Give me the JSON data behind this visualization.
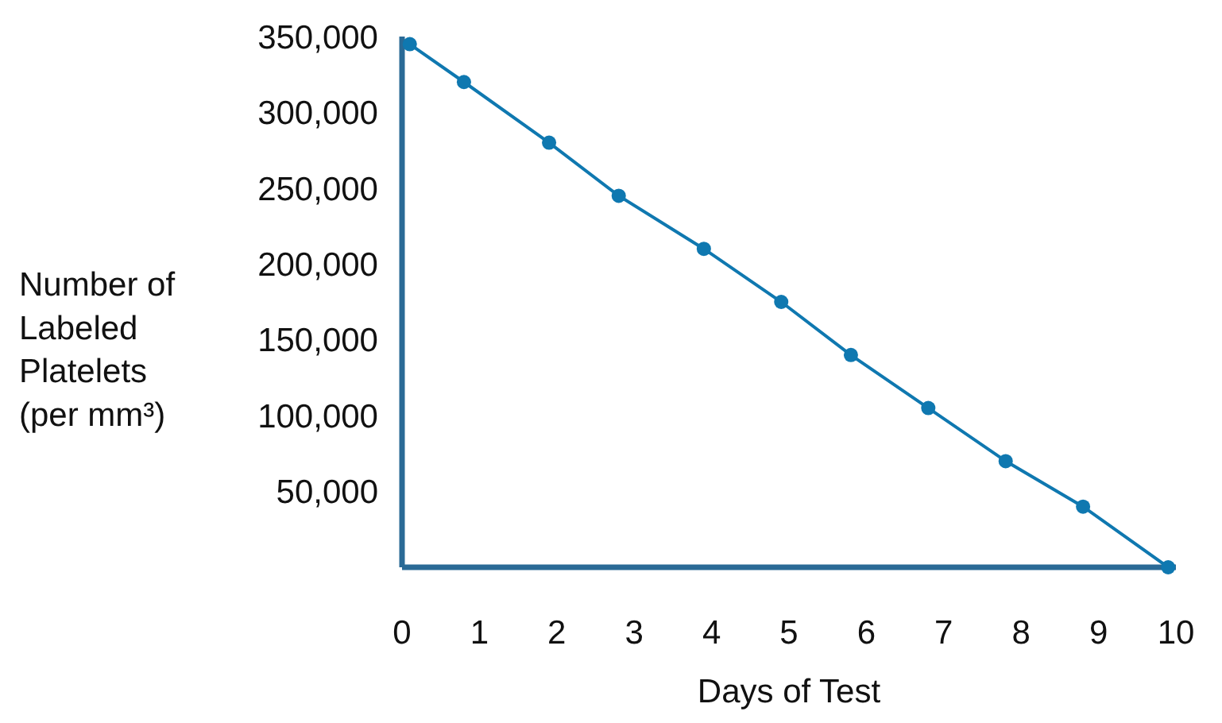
{
  "chart_data": {
    "type": "line",
    "xlabel": "Days of Test",
    "ylabel": "Number of\nLabeled\nPlatelets\n(per mm³)",
    "x": [
      0.1,
      0.8,
      1.9,
      2.8,
      3.9,
      4.9,
      5.8,
      6.8,
      7.8,
      8.8,
      9.9
    ],
    "values": [
      345000,
      320000,
      280000,
      245000,
      210000,
      175000,
      140000,
      105000,
      70000,
      40000,
      0
    ],
    "color": "#0f78b0",
    "marker": "circle",
    "line_style": "solid",
    "xlim": [
      0,
      10
    ],
    "xticks": [
      0,
      1,
      2,
      3,
      4,
      5,
      6,
      7,
      8,
      9,
      10
    ],
    "ylim": [
      0,
      350000
    ],
    "yticks": [
      {
        "value": 50000,
        "label": "50,000"
      },
      {
        "value": 100000,
        "label": "100,000"
      },
      {
        "value": 150000,
        "label": "150,000"
      },
      {
        "value": 200000,
        "label": "200,000"
      },
      {
        "value": 250000,
        "label": "250,000"
      },
      {
        "value": 300000,
        "label": "300,000"
      },
      {
        "value": 350000,
        "label": "350,000"
      }
    ]
  }
}
